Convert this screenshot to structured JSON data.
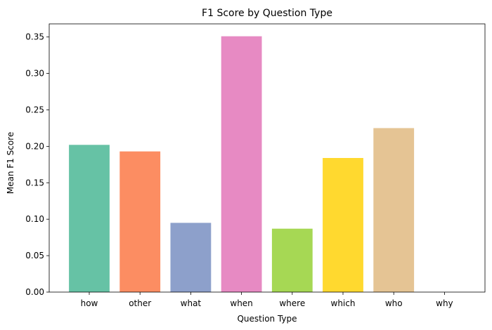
{
  "chart_data": {
    "type": "bar",
    "title": "F1 Score by Question Type",
    "xlabel": "Question Type",
    "ylabel": "Mean F1 Score",
    "categories": [
      "how",
      "other",
      "what",
      "when",
      "where",
      "which",
      "who",
      "why"
    ],
    "values": [
      0.202,
      0.193,
      0.095,
      0.351,
      0.087,
      0.184,
      0.225,
      0.0
    ],
    "ylim": [
      0,
      0.368
    ],
    "yticks": [
      0.0,
      0.05,
      0.1,
      0.15,
      0.2,
      0.25,
      0.3,
      0.35
    ],
    "ytick_labels": [
      "0.00",
      "0.05",
      "0.10",
      "0.15",
      "0.20",
      "0.25",
      "0.30",
      "0.35"
    ],
    "colors": [
      "#66c2a5",
      "#fc8d62",
      "#8da0cb",
      "#e78ac3",
      "#a6d854",
      "#ffd92f",
      "#e5c494",
      "#b3b3b3"
    ],
    "grid": false,
    "legend": "none"
  }
}
